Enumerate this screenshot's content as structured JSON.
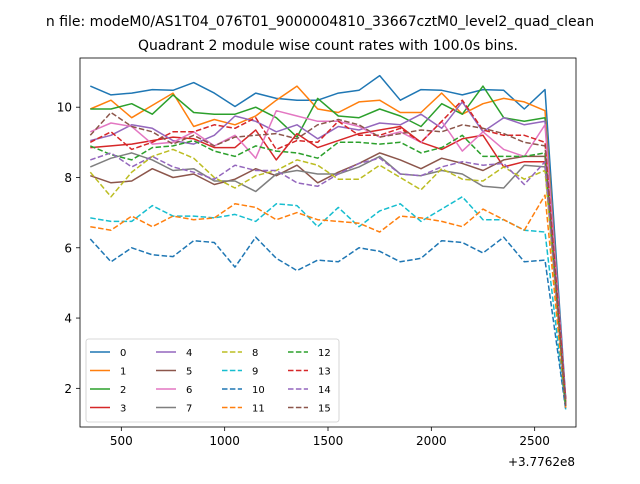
{
  "figure": {
    "suptitle": "n file: modeM0/AS1T04_076T01_9000004810_33667cztM0_level2_quad_clean",
    "title": "Quadrant 2 module wise count rates with 100.0s bins.",
    "offset_label": "+3.7762e8"
  },
  "chart_data": {
    "type": "line",
    "title": "Quadrant 2 module wise count rates with 100.0s bins.",
    "xlabel": "",
    "ylabel": "",
    "x_offset": 377620000,
    "xlim": [
      300,
      2700
    ],
    "ylim": [
      0.9,
      11.4
    ],
    "xticks": [
      500,
      1000,
      1500,
      2000,
      2500
    ],
    "yticks": [
      2,
      4,
      6,
      8,
      10
    ],
    "grid": false,
    "legend_placement": "lower-left",
    "x": [
      350,
      450,
      550,
      650,
      750,
      850,
      950,
      1050,
      1150,
      1250,
      1350,
      1450,
      1550,
      1650,
      1750,
      1850,
      1950,
      2050,
      2150,
      2250,
      2350,
      2450,
      2550,
      2650
    ],
    "series": [
      {
        "name": "0",
        "color": "#1f77b4",
        "dash": "solid",
        "values": [
          10.6,
          10.35,
          10.4,
          10.5,
          10.48,
          10.7,
          10.4,
          10.02,
          10.4,
          10.25,
          10.2,
          10.2,
          10.4,
          10.48,
          10.9,
          10.2,
          10.5,
          10.48,
          10.35,
          10.5,
          10.48,
          9.95,
          10.5,
          1.7
        ]
      },
      {
        "name": "1",
        "color": "#ff7f0e",
        "dash": "solid",
        "values": [
          9.95,
          10.2,
          9.7,
          10.05,
          10.4,
          9.45,
          9.65,
          9.5,
          9.75,
          10.2,
          10.6,
          9.95,
          9.85,
          10.15,
          10.2,
          9.85,
          9.85,
          10.4,
          9.8,
          10.1,
          10.25,
          10.15,
          9.9,
          1.6
        ]
      },
      {
        "name": "2",
        "color": "#2ca02c",
        "dash": "solid",
        "values": [
          9.95,
          9.95,
          10.1,
          9.8,
          10.35,
          9.85,
          9.8,
          9.8,
          10.0,
          9.7,
          9.15,
          10.25,
          9.75,
          9.7,
          9.95,
          9.75,
          9.45,
          10.1,
          9.8,
          10.6,
          9.7,
          9.6,
          9.7,
          1.5
        ]
      },
      {
        "name": "3",
        "color": "#d62728",
        "dash": "solid",
        "values": [
          8.85,
          8.9,
          8.95,
          9.05,
          9.15,
          9.1,
          8.85,
          8.85,
          9.35,
          8.5,
          9.25,
          8.85,
          9.05,
          9.25,
          9.35,
          9.45,
          9.0,
          8.8,
          9.1,
          9.2,
          8.3,
          8.45,
          8.45,
          1.6
        ]
      },
      {
        "name": "4",
        "color": "#9467bd",
        "dash": "solid",
        "values": [
          9.05,
          9.2,
          9.5,
          9.4,
          9.05,
          8.95,
          9.2,
          9.75,
          9.6,
          9.3,
          9.5,
          9.1,
          9.45,
          9.35,
          9.55,
          9.5,
          9.8,
          9.4,
          10.15,
          9.3,
          9.7,
          9.5,
          9.6,
          1.7
        ]
      },
      {
        "name": "5",
        "color": "#8c564b",
        "dash": "solid",
        "values": [
          8.05,
          7.85,
          7.9,
          8.25,
          8.0,
          8.1,
          7.8,
          7.95,
          8.25,
          8.05,
          8.35,
          7.85,
          8.15,
          8.4,
          8.7,
          8.5,
          8.25,
          8.55,
          8.4,
          8.2,
          8.5,
          8.6,
          8.6,
          1.5
        ]
      },
      {
        "name": "6",
        "color": "#e377c2",
        "dash": "solid",
        "values": [
          9.3,
          9.55,
          9.45,
          8.95,
          9.0,
          9.3,
          8.9,
          9.2,
          8.55,
          9.9,
          9.75,
          9.6,
          9.6,
          9.45,
          9.15,
          9.3,
          9.0,
          9.6,
          8.75,
          9.3,
          8.8,
          8.6,
          9.5,
          1.5
        ]
      },
      {
        "name": "7",
        "color": "#7f7f7f",
        "dash": "solid",
        "values": [
          8.3,
          8.55,
          8.7,
          8.5,
          8.2,
          8.25,
          7.9,
          7.9,
          7.6,
          8.1,
          8.2,
          8.1,
          8.1,
          8.3,
          8.6,
          8.1,
          8.05,
          8.2,
          8.1,
          7.75,
          7.7,
          8.35,
          8.3,
          1.5
        ]
      },
      {
        "name": "8",
        "color": "#bcbd22",
        "dash": "dashed",
        "values": [
          8.15,
          7.45,
          8.15,
          8.6,
          8.8,
          8.55,
          8.0,
          7.7,
          8.05,
          8.2,
          8.5,
          8.35,
          7.95,
          7.95,
          8.35,
          8.0,
          7.65,
          8.25,
          7.95,
          7.9,
          8.3,
          7.95,
          8.2,
          1.5
        ]
      },
      {
        "name": "9",
        "color": "#17becf",
        "dash": "dashed",
        "values": [
          6.85,
          6.75,
          6.75,
          7.2,
          6.9,
          6.9,
          6.85,
          6.95,
          6.75,
          7.25,
          7.2,
          6.6,
          7.15,
          6.6,
          7.05,
          7.25,
          6.75,
          7.1,
          7.45,
          6.8,
          6.8,
          6.5,
          6.45,
          1.4
        ]
      },
      {
        "name": "10",
        "color": "#1f77b4",
        "dash": "dashed",
        "values": [
          6.25,
          5.6,
          6.0,
          5.8,
          5.75,
          6.2,
          6.15,
          5.45,
          6.3,
          5.7,
          5.35,
          5.65,
          5.6,
          6.0,
          5.9,
          5.6,
          5.7,
          6.2,
          6.15,
          5.85,
          6.3,
          5.6,
          5.65,
          1.4
        ]
      },
      {
        "name": "11",
        "color": "#ff7f0e",
        "dash": "dashed",
        "values": [
          6.6,
          6.5,
          6.9,
          6.6,
          6.9,
          6.8,
          6.85,
          7.25,
          7.15,
          6.8,
          7.0,
          6.8,
          6.75,
          6.7,
          6.45,
          6.9,
          6.85,
          6.75,
          6.6,
          7.1,
          6.8,
          6.5,
          7.5,
          1.45
        ]
      },
      {
        "name": "12",
        "color": "#2ca02c",
        "dash": "dashed",
        "values": [
          8.9,
          8.65,
          8.5,
          8.85,
          8.9,
          9.05,
          8.75,
          8.6,
          8.9,
          8.75,
          8.7,
          8.55,
          9.0,
          9.0,
          8.95,
          9.0,
          8.7,
          8.85,
          9.2,
          8.6,
          8.6,
          8.6,
          8.7,
          1.5
        ]
      },
      {
        "name": "13",
        "color": "#d62728",
        "dash": "dashed",
        "values": [
          9.0,
          9.3,
          8.8,
          9.0,
          9.3,
          9.3,
          9.5,
          9.4,
          9.7,
          8.8,
          9.05,
          9.0,
          9.6,
          9.2,
          9.2,
          9.4,
          9.0,
          9.6,
          10.2,
          9.35,
          9.2,
          9.2,
          9.0,
          1.7
        ]
      },
      {
        "name": "14",
        "color": "#9467bd",
        "dash": "dashed",
        "values": [
          8.5,
          8.7,
          8.3,
          8.6,
          8.3,
          8.15,
          7.95,
          8.35,
          8.2,
          8.2,
          7.85,
          7.75,
          8.1,
          8.4,
          8.55,
          8.1,
          8.05,
          8.3,
          8.45,
          8.35,
          8.4,
          7.8,
          8.45,
          1.6
        ]
      },
      {
        "name": "15",
        "color": "#8c564b",
        "dash": "dashed",
        "values": [
          9.2,
          9.85,
          9.45,
          9.3,
          8.95,
          9.2,
          8.9,
          9.15,
          9.2,
          9.25,
          9.1,
          9.5,
          9.65,
          9.5,
          9.15,
          9.25,
          9.35,
          9.3,
          9.5,
          9.4,
          9.25,
          9.0,
          8.9,
          1.5
        ]
      }
    ]
  }
}
